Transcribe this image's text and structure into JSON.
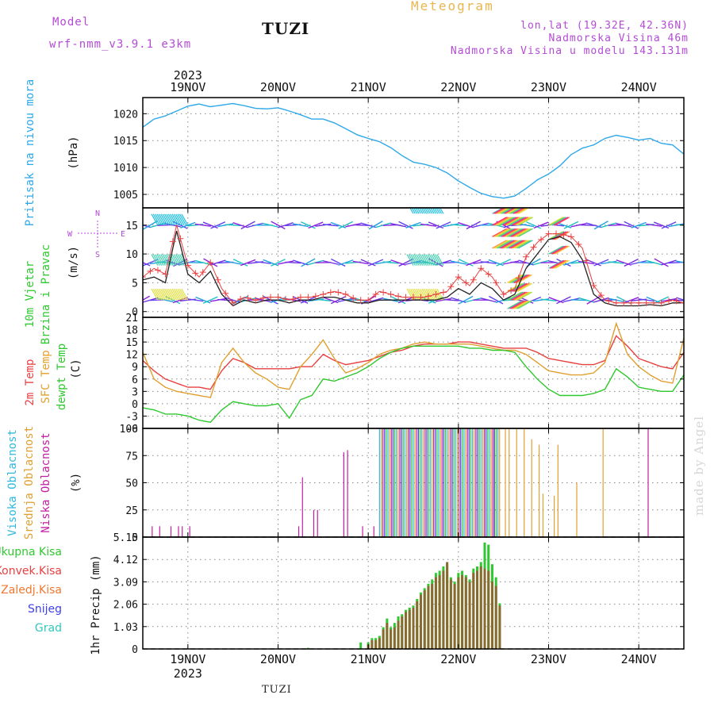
{
  "header": {
    "model_label": "Model",
    "model_name": "wrf-nmm_v3.9.1 e3km",
    "station": "TUZI",
    "title": "Meteogram",
    "coords": "lon,lat (19.32E, 42.36N)",
    "elevation": "Nadmorska Visina 46m",
    "model_elevation": "Nadmorska Visina u modelu 143.131m"
  },
  "footer": {
    "station": "TUZI"
  },
  "credit": "made by Angel",
  "colors": {
    "pressure": "#2fa8e8",
    "wind_speed": "#222222",
    "wind_gust": "#e84040",
    "temp2m": "#e84040",
    "sfc_temp": "#e0a030",
    "dewpt": "#30c830",
    "visoka": "#30b8e0",
    "srednja": "#e0a030",
    "niska": "#c020a0",
    "ukupna": "#30c830",
    "konvek": "#e84040",
    "zaledj": "#f07830",
    "snijeg": "#4040e8",
    "grad": "#30c8c0"
  },
  "chart_data": [
    {
      "type": "line",
      "panel": "pressure",
      "top_date_labels": [
        "19NOV",
        "20NOV",
        "21NOV",
        "22NOV",
        "23NOV",
        "24NOV"
      ],
      "top_year": "2023",
      "ylabel": [
        "Pritisak na nivou mora",
        "(hPa)"
      ],
      "yticks": [
        1005,
        1010,
        1015,
        1020
      ],
      "ylim": [
        1002.5,
        1023
      ],
      "x_hours": [
        0,
        3,
        6,
        9,
        12,
        15,
        18,
        21,
        24,
        27,
        30,
        33,
        36,
        39,
        42,
        45,
        48,
        51,
        54,
        57,
        60,
        63,
        66,
        69,
        72,
        75,
        78,
        81,
        84,
        87,
        90,
        93,
        96,
        99,
        102,
        105,
        108,
        111,
        114,
        117,
        120,
        123,
        126,
        129,
        132,
        135,
        138,
        141,
        144
      ],
      "series": [
        {
          "values": [
            1017.5,
            1019.0,
            1019.6,
            1020.5,
            1021.4,
            1021.8,
            1021.3,
            1021.6,
            1021.9,
            1021.5,
            1021.0,
            1020.9,
            1021.1,
            1020.5,
            1019.8,
            1019.0,
            1019.0,
            1018.3,
            1017.2,
            1016.1,
            1015.4,
            1014.8,
            1013.7,
            1012.2,
            1011.0,
            1010.6,
            1010.0,
            1009.0,
            1007.5,
            1006.3,
            1005.2,
            1004.6,
            1004.3,
            1004.7,
            1006.1,
            1007.7,
            1008.8,
            1010.3,
            1012.4,
            1013.6,
            1014.2,
            1015.4,
            1016.0,
            1015.6,
            1015.1,
            1015.4,
            1014.5,
            1014.2,
            1012.5
          ]
        }
      ]
    },
    {
      "type": "line",
      "panel": "wind",
      "ylabel": [
        "10m Vjetar",
        "Brzina i Pravac",
        "(m/s)"
      ],
      "compass": {
        "n": "N",
        "w": "W",
        "e": "E",
        "s": "S"
      },
      "yticks": [
        0,
        5,
        10,
        15
      ],
      "ylim": [
        -1,
        18
      ],
      "x_hours": [
        0,
        3,
        6,
        9,
        12,
        15,
        18,
        21,
        24,
        27,
        30,
        33,
        36,
        39,
        42,
        45,
        48,
        51,
        54,
        57,
        60,
        63,
        66,
        69,
        72,
        75,
        78,
        81,
        84,
        87,
        90,
        93,
        96,
        99,
        102,
        105,
        108,
        111,
        114,
        117,
        120,
        123,
        126,
        129,
        132,
        135,
        138,
        141,
        144
      ],
      "series": [
        {
          "name": "speed",
          "values": [
            5.5,
            6.0,
            5.0,
            14.0,
            6.5,
            5.0,
            7.0,
            3.0,
            1.0,
            2.0,
            1.5,
            2.0,
            2.0,
            1.5,
            2.0,
            2.0,
            2.5,
            2.5,
            2.0,
            1.5,
            1.5,
            2.0,
            2.0,
            2.0,
            2.0,
            2.0,
            2.0,
            2.5,
            4.0,
            3.0,
            5.0,
            4.0,
            2.0,
            3.0,
            7.5,
            10.0,
            12.5,
            13.0,
            12.0,
            9.0,
            3.0,
            1.5,
            1.0,
            1.0,
            1.0,
            1.2,
            1.0,
            1.5,
            1.5
          ]
        },
        {
          "name": "gust",
          "values": [
            6.0,
            7.5,
            6.5,
            15.0,
            8.0,
            6.0,
            8.5,
            4.0,
            1.5,
            2.5,
            2.0,
            2.5,
            2.5,
            2.0,
            2.5,
            2.5,
            3.0,
            3.5,
            3.0,
            2.0,
            2.0,
            3.5,
            3.0,
            2.5,
            2.5,
            2.5,
            3.0,
            3.5,
            6.0,
            4.5,
            7.5,
            6.0,
            3.0,
            4.0,
            9.5,
            12.0,
            13.5,
            13.5,
            13.0,
            11.0,
            4.5,
            2.0,
            1.5,
            1.5,
            1.5,
            1.5,
            1.5,
            2.0,
            1.5
          ]
        }
      ],
      "arrow_rows": [
        2,
        8.5,
        15
      ]
    },
    {
      "type": "line",
      "panel": "temperature",
      "ylabel": [
        "2m Temp",
        "SFC Temp",
        "dewpt Temp",
        "(C)"
      ],
      "yticks": [
        -6,
        -3,
        0,
        3,
        6,
        9,
        12,
        15,
        18,
        21
      ],
      "ylim": [
        -6,
        21
      ],
      "x_hours": [
        0,
        3,
        6,
        9,
        12,
        15,
        18,
        21,
        24,
        27,
        30,
        33,
        36,
        39,
        42,
        45,
        48,
        51,
        54,
        57,
        60,
        63,
        66,
        69,
        72,
        75,
        78,
        81,
        84,
        87,
        90,
        93,
        96,
        99,
        102,
        105,
        108,
        111,
        114,
        117,
        120,
        123,
        126,
        129,
        132,
        135,
        138,
        141,
        144
      ],
      "series": [
        {
          "name": "2m Temp",
          "values": [
            10.5,
            8.0,
            6.0,
            5.0,
            4.0,
            4.0,
            3.5,
            8.0,
            11.0,
            10.0,
            8.5,
            8.5,
            8.5,
            8.5,
            9.0,
            9.0,
            12.0,
            10.5,
            9.5,
            10.0,
            10.5,
            11.5,
            12.5,
            13.0,
            14.0,
            14.5,
            14.5,
            14.5,
            15.0,
            15.0,
            14.5,
            14.0,
            13.5,
            13.5,
            13.5,
            12.5,
            11.0,
            10.5,
            10.0,
            9.5,
            9.5,
            10.5,
            16.5,
            14.0,
            11.0,
            10.0,
            9.0,
            8.5,
            12.5
          ]
        },
        {
          "name": "SFC Temp",
          "values": [
            12.5,
            6.0,
            4.0,
            3.0,
            2.5,
            2.0,
            1.5,
            10.0,
            13.5,
            10.0,
            7.5,
            6.0,
            4.0,
            3.5,
            9.0,
            12.0,
            15.5,
            11.0,
            7.5,
            8.5,
            10.0,
            12.0,
            13.0,
            13.5,
            14.5,
            15.0,
            14.5,
            14.5,
            14.5,
            14.5,
            14.0,
            13.5,
            13.0,
            13.0,
            12.0,
            10.0,
            8.0,
            7.5,
            7.0,
            7.0,
            7.5,
            10.0,
            19.5,
            12.0,
            9.0,
            7.0,
            5.5,
            5.0,
            16.0
          ]
        },
        {
          "name": "dewpt Temp",
          "values": [
            -1.0,
            -1.5,
            -2.5,
            -2.5,
            -3.0,
            -4.0,
            -4.5,
            -1.5,
            0.5,
            0.0,
            -0.5,
            -0.5,
            0.0,
            -3.5,
            1.0,
            2.0,
            6.0,
            5.5,
            6.5,
            7.5,
            9.0,
            11.0,
            12.5,
            13.5,
            14.0,
            14.0,
            14.0,
            14.0,
            14.0,
            13.5,
            13.5,
            13.0,
            13.0,
            12.5,
            9.0,
            6.0,
            3.5,
            2.0,
            2.0,
            2.0,
            2.5,
            3.5,
            8.5,
            6.5,
            4.0,
            3.5,
            3.0,
            3.0,
            7.0
          ]
        }
      ]
    },
    {
      "type": "bar",
      "panel": "clouds",
      "ylabel": [
        "Visoka Oblacnost",
        "Srednja Oblacnost",
        "Niska Oblacnost",
        "(%)"
      ],
      "yticks": [
        0,
        25,
        50,
        75,
        100
      ],
      "ylim": [
        0,
        100
      ],
      "series": [
        {
          "name": "Niska Oblacnost",
          "x_hours": [
            2.5,
            4.5,
            7.5,
            9.5,
            10.5,
            12.5,
            41.5,
            42.5,
            45.5,
            46.5,
            53.5,
            54.5,
            58.5,
            61.5,
            134.5
          ],
          "values": [
            10,
            10,
            10,
            10,
            10,
            10,
            10,
            55,
            25,
            25,
            78,
            80,
            10,
            10,
            100
          ]
        },
        {
          "name": "Srednja Oblacnost",
          "x_hours": [
            93.5,
            94.5,
            96.5,
            97.5,
            99.5,
            101.5,
            103.5,
            105.5,
            106.5,
            109.5,
            110.5,
            115.5,
            122.5
          ],
          "values": [
            100,
            100,
            100,
            100,
            100,
            100,
            90,
            85,
            40,
            38,
            85,
            50,
            100
          ]
        },
        {
          "name": "Visoka Oblacnost",
          "x_hours": [],
          "values": []
        },
        {
          "name": "mixed",
          "x_range": [
            63,
            95
          ],
          "value": 100
        }
      ]
    },
    {
      "type": "bar",
      "panel": "precipitation",
      "ylabel": [
        "1hr Precip",
        "(mm)"
      ],
      "legend": [
        "Ukupna Kisa",
        "Konvek.Kisa",
        "Zaledj.Kisa",
        "Snijeg",
        "Grad"
      ],
      "bottom_date_labels": [
        "19NOV",
        "20NOV",
        "21NOV",
        "22NOV",
        "23NOV",
        "24NOV"
      ],
      "bottom_year": "2023",
      "yticks": [
        "0",
        "1.03",
        "2.06",
        "3.09",
        "4.12",
        "5.15"
      ],
      "ylim": [
        0,
        5.15
      ],
      "x_hours": [
        60,
        61,
        62,
        63,
        64,
        65,
        66,
        67,
        68,
        69,
        70,
        71,
        72,
        73,
        74,
        75,
        76,
        77,
        78,
        79,
        80,
        81,
        82,
        83,
        84,
        85,
        86,
        87,
        88,
        89,
        90,
        91,
        92,
        93,
        94,
        95
      ],
      "series": [
        {
          "name": "Ukupna Kisa",
          "values": [
            0.3,
            0.5,
            0.5,
            0.6,
            1.0,
            1.4,
            1.0,
            1.2,
            1.5,
            1.6,
            1.8,
            1.9,
            2.0,
            2.3,
            2.6,
            2.8,
            3.0,
            3.2,
            3.5,
            3.6,
            3.8,
            3.9,
            3.3,
            3.1,
            3.5,
            3.6,
            3.4,
            3.2,
            3.7,
            3.8,
            4.0,
            4.9,
            4.8,
            3.9,
            3.3,
            2.1
          ]
        },
        {
          "name": "Konvek.Kisa",
          "values": [
            0.2,
            0.4,
            0.4,
            0.5,
            0.9,
            1.2,
            0.9,
            1.0,
            1.3,
            1.5,
            1.7,
            1.8,
            1.9,
            2.2,
            2.5,
            2.7,
            2.9,
            3.0,
            3.3,
            3.4,
            3.6,
            4.0,
            3.2,
            3.0,
            3.3,
            3.4,
            3.3,
            3.1,
            3.5,
            3.6,
            3.8,
            3.7,
            3.6,
            3.1,
            2.9,
            2.0
          ]
        }
      ],
      "extra_bars": {
        "x_hours": [
          44,
          58
        ],
        "values": [
          0.05,
          0.3
        ]
      }
    }
  ]
}
